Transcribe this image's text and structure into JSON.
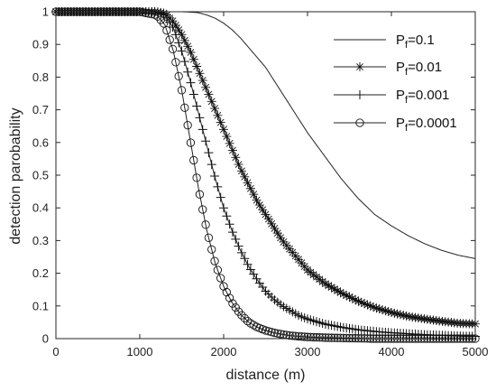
{
  "chart_data": {
    "type": "line",
    "title": "",
    "xlabel": "distance (m)",
    "ylabel": "detection parobability",
    "xlim": [
      0,
      5000
    ],
    "ylim": [
      0,
      1
    ],
    "x_ticks": [
      0,
      1000,
      2000,
      3000,
      4000,
      5000
    ],
    "y_ticks": [
      0,
      0.1,
      0.2,
      0.3,
      0.4,
      0.5,
      0.6,
      0.7,
      0.8,
      0.9,
      1
    ],
    "x_tick_labels": [
      "0",
      "1000",
      "2000",
      "3000",
      "4000",
      "5000"
    ],
    "y_tick_labels": [
      "0",
      "0.1",
      "0.2",
      "0.3",
      "0.4",
      "0.5",
      "0.6",
      "0.7",
      "0.8",
      "0.9",
      "1"
    ],
    "grid": false,
    "legend_position": "top-right",
    "x": [
      0,
      500,
      1000,
      1200,
      1300,
      1400,
      1500,
      1600,
      1700,
      1800,
      1900,
      2000,
      2100,
      2200,
      2300,
      2400,
      2500,
      2600,
      2700,
      2800,
      2900,
      3000,
      3200,
      3400,
      3600,
      3800,
      4000,
      4200,
      4400,
      4600,
      4800,
      5000
    ],
    "series": [
      {
        "name": "P_f=0.1",
        "legend_main": "P",
        "legend_sub": "f",
        "legend_tail": "=0.1",
        "marker": "none",
        "values": [
          1.0,
          1.0,
          1.0,
          1.0,
          1.0,
          1.0,
          1.0,
          0.999,
          0.997,
          0.99,
          0.98,
          0.965,
          0.945,
          0.92,
          0.89,
          0.86,
          0.83,
          0.79,
          0.75,
          0.71,
          0.67,
          0.63,
          0.56,
          0.49,
          0.43,
          0.38,
          0.345,
          0.315,
          0.29,
          0.27,
          0.255,
          0.245
        ]
      },
      {
        "name": "P_f=0.01",
        "legend_main": "P",
        "legend_sub": "f",
        "legend_tail": "=0.01",
        "marker": "star",
        "values": [
          1.0,
          1.0,
          1.0,
          1.0,
          0.995,
          0.97,
          0.93,
          0.88,
          0.82,
          0.76,
          0.7,
          0.64,
          0.58,
          0.52,
          0.47,
          0.42,
          0.38,
          0.34,
          0.3,
          0.27,
          0.24,
          0.21,
          0.17,
          0.14,
          0.115,
          0.095,
          0.08,
          0.068,
          0.06,
          0.053,
          0.047,
          0.045
        ]
      },
      {
        "name": "P_f=0.001",
        "legend_main": "P",
        "legend_sub": "f",
        "legend_tail": "=0.001",
        "marker": "plus",
        "values": [
          1.0,
          1.0,
          1.0,
          1.0,
          0.99,
          0.95,
          0.88,
          0.79,
          0.69,
          0.59,
          0.49,
          0.4,
          0.33,
          0.27,
          0.22,
          0.18,
          0.145,
          0.12,
          0.1,
          0.085,
          0.07,
          0.06,
          0.045,
          0.035,
          0.027,
          0.022,
          0.018,
          0.015,
          0.012,
          0.01,
          0.008,
          0.007
        ]
      },
      {
        "name": "P_f=0.0001",
        "legend_main": "P",
        "legend_sub": "f",
        "legend_tail": "=0.0001",
        "marker": "circle",
        "values": [
          1.0,
          1.0,
          1.0,
          0.99,
          0.96,
          0.88,
          0.76,
          0.61,
          0.46,
          0.33,
          0.23,
          0.16,
          0.11,
          0.075,
          0.05,
          0.035,
          0.025,
          0.018,
          0.013,
          0.009,
          0.007,
          0.005,
          0.003,
          0.002,
          0.001,
          0.0,
          0.0,
          0.0,
          0.0,
          0.0,
          0.0,
          0.0
        ]
      }
    ]
  }
}
